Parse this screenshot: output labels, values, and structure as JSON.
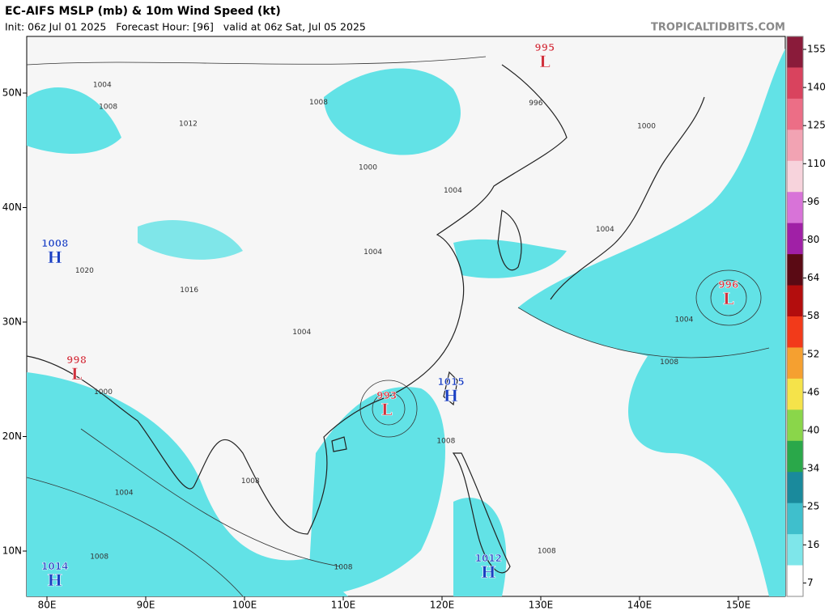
{
  "header": {
    "title": "EC-AIFS MSLP (mb) & 10m Wind Speed (kt)",
    "subtitle": "Init: 06z Jul 01 2025   Forecast Hour: [96]   valid at 06z Sat, Jul 05 2025",
    "site": "TROPICALTIDBITS.COM"
  },
  "map": {
    "lon_ticks": [
      {
        "value": 80,
        "label": "80E"
      },
      {
        "value": 90,
        "label": "90E"
      },
      {
        "value": 100,
        "label": "100E"
      },
      {
        "value": 110,
        "label": "110E"
      },
      {
        "value": 120,
        "label": "120E"
      },
      {
        "value": 130,
        "label": "130E"
      },
      {
        "value": 140,
        "label": "140E"
      },
      {
        "value": 150,
        "label": "150E"
      }
    ],
    "lat_ticks": [
      {
        "value": 50,
        "label": "50N"
      },
      {
        "value": 40,
        "label": "40N"
      },
      {
        "value": 30,
        "label": "30N"
      },
      {
        "value": 20,
        "label": "20N"
      },
      {
        "value": 10,
        "label": "10N"
      }
    ],
    "centers": [
      {
        "letter": "L",
        "pressure": "995",
        "lon": 130.4,
        "lat": 52.8
      },
      {
        "letter": "L",
        "pressure": "996",
        "lon": 149.0,
        "lat": 32.1
      },
      {
        "letter": "L",
        "pressure": "998",
        "lon": 83.0,
        "lat": 25.5
      },
      {
        "letter": "L",
        "pressure": "993",
        "lon": 114.4,
        "lat": 22.4
      },
      {
        "letter": "H",
        "pressure": "1015",
        "lon": 120.9,
        "lat": 23.6
      },
      {
        "letter": "H",
        "pressure": "1008",
        "lon": 80.8,
        "lat": 35.7
      },
      {
        "letter": "H",
        "pressure": "1014",
        "lon": 80.8,
        "lat": 7.5
      },
      {
        "letter": "H",
        "pressure": "1012",
        "lon": 124.7,
        "lat": 8.2
      }
    ],
    "isobar_labels": [
      {
        "text": "1004",
        "lon": 85.6,
        "lat": 50.7
      },
      {
        "text": "1008",
        "lon": 86.2,
        "lat": 48.8
      },
      {
        "text": "1012",
        "lon": 94.3,
        "lat": 47.3
      },
      {
        "text": "1008",
        "lon": 107.5,
        "lat": 49.2
      },
      {
        "text": "996",
        "lon": 129.5,
        "lat": 49.1
      },
      {
        "text": "1000",
        "lon": 140.7,
        "lat": 47.1
      },
      {
        "text": "1000",
        "lon": 112.5,
        "lat": 43.5
      },
      {
        "text": "1004",
        "lon": 121.1,
        "lat": 41.5
      },
      {
        "text": "1004",
        "lon": 136.5,
        "lat": 38.1
      },
      {
        "text": "1004",
        "lon": 113.0,
        "lat": 36.1
      },
      {
        "text": "1004",
        "lon": 105.8,
        "lat": 29.1
      },
      {
        "text": "1004",
        "lon": 144.5,
        "lat": 30.2
      },
      {
        "text": "1008",
        "lon": 143.0,
        "lat": 26.5
      },
      {
        "text": "1000",
        "lon": 85.7,
        "lat": 23.9
      },
      {
        "text": "1004",
        "lon": 87.8,
        "lat": 15.1
      },
      {
        "text": "1008",
        "lon": 100.6,
        "lat": 16.1
      },
      {
        "text": "1008",
        "lon": 85.3,
        "lat": 9.5
      },
      {
        "text": "1008",
        "lon": 110.0,
        "lat": 8.6
      },
      {
        "text": "1008",
        "lon": 130.6,
        "lat": 10.0
      },
      {
        "text": "1008",
        "lon": 120.4,
        "lat": 19.6
      },
      {
        "text": "1016",
        "lon": 94.4,
        "lat": 32.8
      },
      {
        "text": "1020",
        "lon": 83.8,
        "lat": 34.5
      }
    ]
  },
  "colorbar": {
    "ticks": [
      155,
      140,
      125,
      110,
      96,
      80,
      64,
      58,
      52,
      46,
      40,
      34,
      25,
      16,
      7
    ],
    "colors": [
      "#8a1b3a",
      "#d9435e",
      "#ec6e86",
      "#f2a3b3",
      "#f7d3dc",
      "#d873d8",
      "#a020a6",
      "#5a0a14",
      "#b30d0d",
      "#f23a1a",
      "#f5a030",
      "#f5e34a",
      "#8ad64a",
      "#2aa84a",
      "#1a8a9c",
      "#3fbfcc",
      "#7ee6ea",
      "#ffffff"
    ]
  }
}
